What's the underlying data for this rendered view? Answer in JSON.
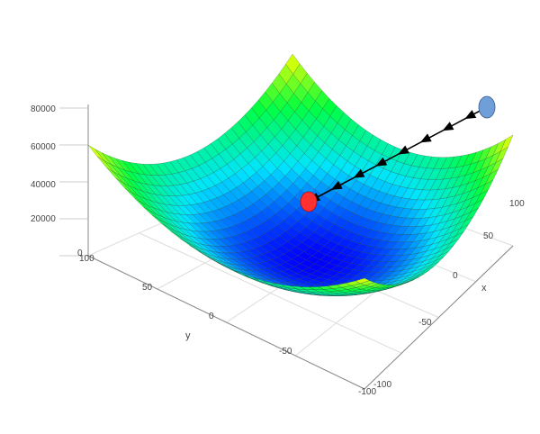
{
  "chart_data": {
    "type": "surface",
    "surface": "z = 3*(x^2 + y^2) (quadratic bowl)",
    "x": {
      "label": "x",
      "range": [
        -100,
        100
      ],
      "ticks": [
        "100",
        "50",
        "0",
        "-50",
        "-100"
      ]
    },
    "y": {
      "label": "y",
      "range": [
        -100,
        100
      ],
      "ticks": [
        "100",
        "50",
        "0",
        "-50",
        "-100"
      ]
    },
    "z": {
      "label": "",
      "range": [
        0,
        80000
      ],
      "ticks": [
        "80000",
        "60000",
        "40000",
        "20000",
        "0"
      ]
    },
    "grid": true,
    "colormap": [
      "#0000ff",
      "#00e5ff",
      "#00ff40",
      "#ffff00",
      "#ff0000"
    ],
    "gradient_descent_path": {
      "start_point": {
        "color": "#6f9fd8"
      },
      "end_point": {
        "color": "#ff3030"
      },
      "arrow_color": "#000000",
      "steps": 8
    }
  }
}
